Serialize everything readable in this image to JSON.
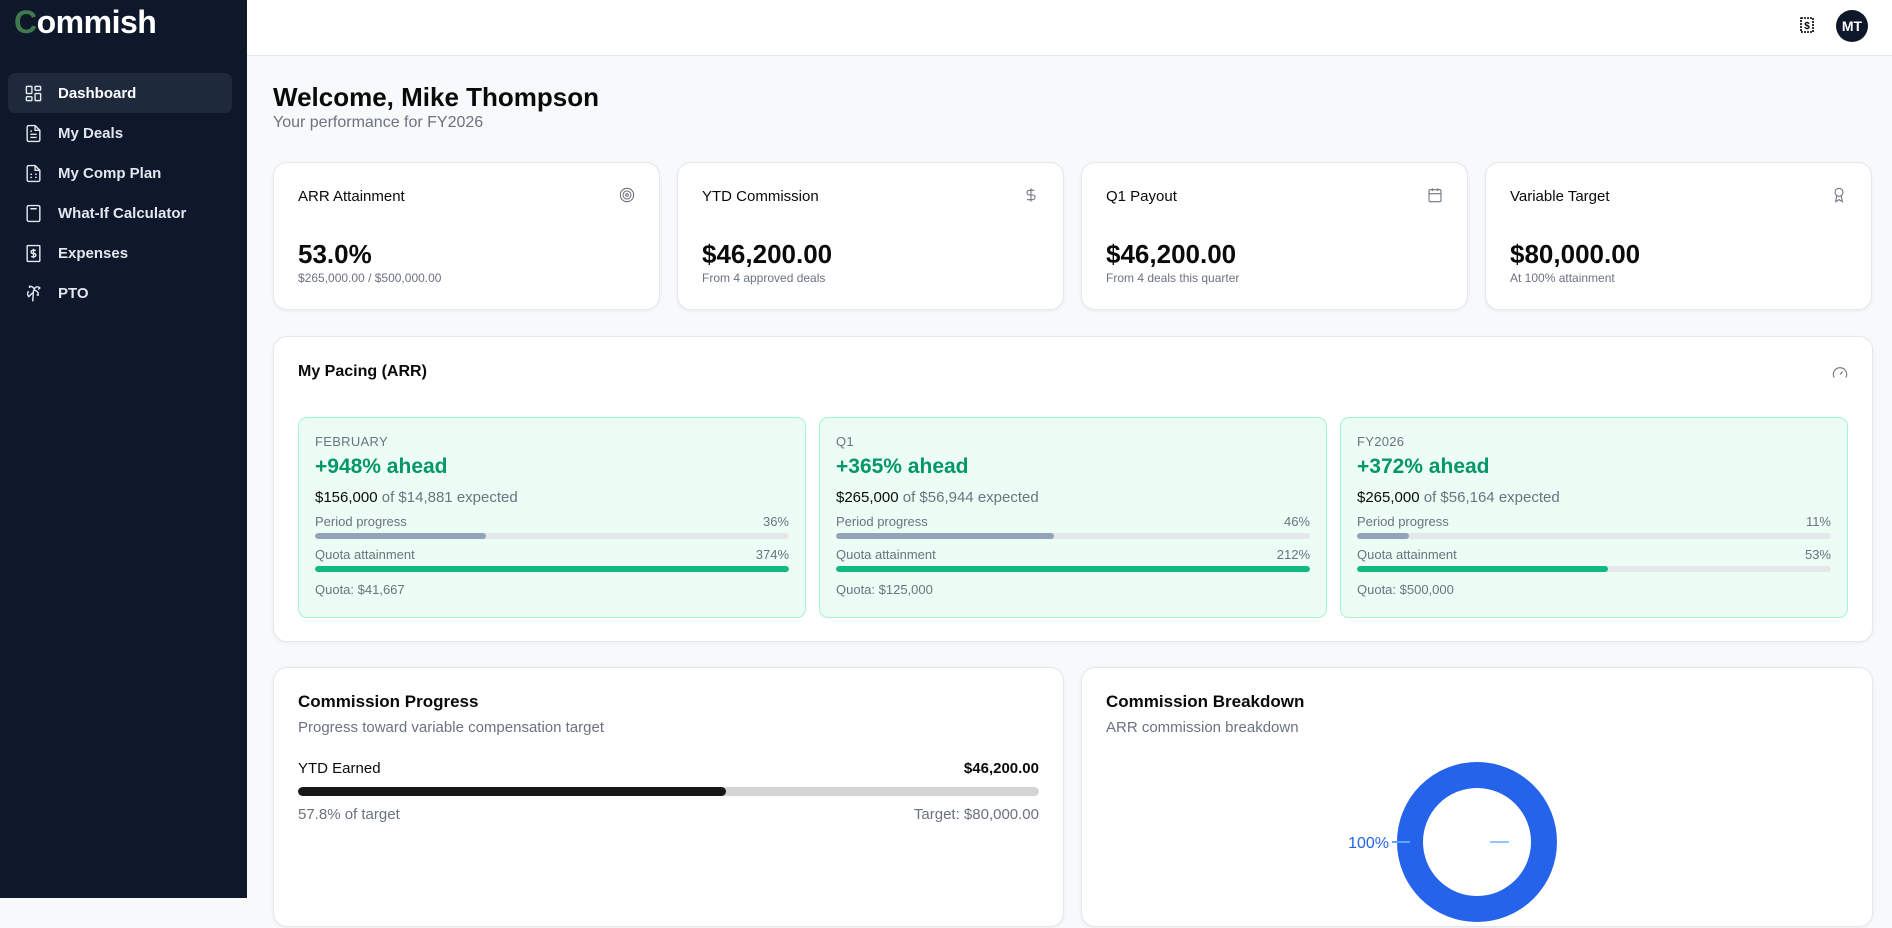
{
  "app": {
    "logo_c": "C",
    "logo_rest": "ommish"
  },
  "sidebar": {
    "items": [
      {
        "label": "Dashboard",
        "icon": "dashboard-icon"
      },
      {
        "label": "My Deals",
        "icon": "file-text-icon"
      },
      {
        "label": "My Comp Plan",
        "icon": "file-spreadsheet-icon"
      },
      {
        "label": "What-If Calculator",
        "icon": "calculator-icon"
      },
      {
        "label": "Expenses",
        "icon": "receipt-icon"
      },
      {
        "label": "PTO",
        "icon": "palm-tree-icon"
      }
    ]
  },
  "header": {
    "avatar": "MT"
  },
  "page": {
    "title": "Welcome, Mike Thompson",
    "subtitle": "Your performance for FY2026"
  },
  "kpis": [
    {
      "label": "ARR Attainment",
      "value": "53.0%",
      "hint": "$265,000.00 / $500,000.00",
      "icon": "target-icon"
    },
    {
      "label": "YTD Commission",
      "value": "$46,200.00",
      "hint": "From 4 approved deals",
      "icon": "dollar-icon"
    },
    {
      "label": "Q1 Payout",
      "value": "$46,200.00",
      "hint": "From 4 deals this quarter",
      "icon": "calendar-icon"
    },
    {
      "label": "Variable Target",
      "value": "$80,000.00",
      "hint": "At 100% attainment",
      "icon": "award-icon"
    }
  ],
  "pacing": {
    "title": "My Pacing (ARR)",
    "period_label": "Period progress",
    "quota_label": "Quota attainment",
    "periods": [
      {
        "name": "FEBRUARY",
        "ahead": "+948% ahead",
        "actual": "$156,000",
        "expected": "of $14,881 expected",
        "period_progress": "36%",
        "period_pct": 36,
        "quota_attainment": "374%",
        "quota_pct": 100,
        "quota": "Quota: $41,667"
      },
      {
        "name": "Q1",
        "ahead": "+365% ahead",
        "actual": "$265,000",
        "expected": "of $56,944 expected",
        "period_progress": "46%",
        "period_pct": 46,
        "quota_attainment": "212%",
        "quota_pct": 100,
        "quota": "Quota: $125,000"
      },
      {
        "name": "FY2026",
        "ahead": "+372% ahead",
        "actual": "$265,000",
        "expected": "of $56,164 expected",
        "period_progress": "11%",
        "period_pct": 11,
        "quota_attainment": "53%",
        "quota_pct": 53,
        "quota": "Quota: $500,000"
      }
    ]
  },
  "commission_progress": {
    "title": "Commission Progress",
    "desc": "Progress toward variable compensation target",
    "label": "YTD Earned",
    "value": "$46,200.00",
    "pct": 57.8,
    "pct_text": "57.8% of target",
    "target": "Target: $80,000.00"
  },
  "breakdown": {
    "title": "Commission Breakdown",
    "desc": "ARR commission breakdown",
    "chart_data": {
      "type": "pie",
      "values": [
        100
      ],
      "labels": [
        "100%"
      ],
      "colors": [
        "#2563eb"
      ]
    }
  },
  "colors": {
    "green": "#059669",
    "bar_green": "#10b981",
    "bar_gray": "#94a3b8",
    "blue": "#2563eb"
  }
}
